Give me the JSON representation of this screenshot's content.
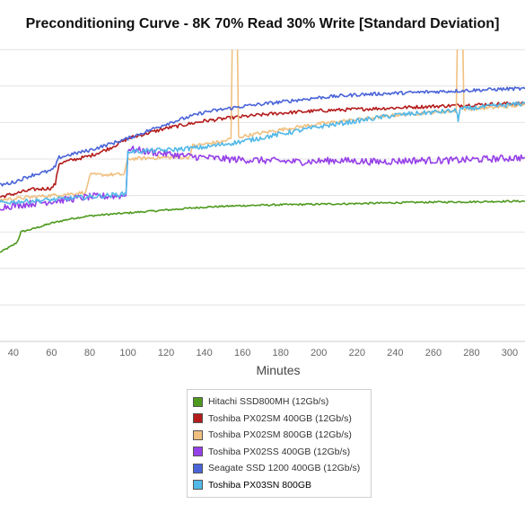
{
  "chart_data": {
    "type": "line",
    "title": "Preconditioning Curve - 8K 70% Read 30% Write [Standard Deviation]",
    "xlabel": "Minutes",
    "ylabel": "",
    "x_ticks": [
      40,
      60,
      80,
      100,
      120,
      140,
      160,
      180,
      200,
      220,
      240,
      260,
      280,
      300
    ],
    "xlim": [
      33,
      308
    ],
    "ylim": [
      0,
      10
    ],
    "grid": "horizontal",
    "legend_position": "bottom",
    "series": [
      {
        "name": "Hitachi SSD800MH (12Gb/s)",
        "color": "#4e9a1e",
        "points": [
          [
            33,
            3.05
          ],
          [
            40,
            3.3
          ],
          [
            42,
            3.4
          ],
          [
            44,
            3.75
          ],
          [
            50,
            3.85
          ],
          [
            60,
            4.05
          ],
          [
            70,
            4.2
          ],
          [
            80,
            4.3
          ],
          [
            90,
            4.35
          ],
          [
            100,
            4.4
          ],
          [
            120,
            4.5
          ],
          [
            140,
            4.6
          ],
          [
            160,
            4.65
          ],
          [
            180,
            4.68
          ],
          [
            200,
            4.7
          ],
          [
            220,
            4.72
          ],
          [
            240,
            4.75
          ],
          [
            260,
            4.77
          ],
          [
            280,
            4.78
          ],
          [
            300,
            4.8
          ],
          [
            308,
            4.8
          ]
        ]
      },
      {
        "name": "Toshiba PX02SM 400GB (12Gb/s)",
        "color": "#b41c1c",
        "points": [
          [
            33,
            4.95
          ],
          [
            40,
            5.05
          ],
          [
            50,
            5.2
          ],
          [
            60,
            5.25
          ],
          [
            62,
            5.4
          ],
          [
            64,
            6.1
          ],
          [
            70,
            6.2
          ],
          [
            80,
            6.35
          ],
          [
            90,
            6.6
          ],
          [
            100,
            6.95
          ],
          [
            120,
            7.3
          ],
          [
            140,
            7.55
          ],
          [
            160,
            7.7
          ],
          [
            180,
            7.82
          ],
          [
            200,
            7.9
          ],
          [
            220,
            7.95
          ],
          [
            240,
            8.0
          ],
          [
            260,
            8.05
          ],
          [
            280,
            8.1
          ],
          [
            300,
            8.15
          ],
          [
            308,
            8.15
          ]
        ]
      },
      {
        "name": "Toshiba PX02SM 800GB (12Gb/s)",
        "color": "#f0c080",
        "points": [
          [
            33,
            4.85
          ],
          [
            60,
            5.0
          ],
          [
            78,
            5.1
          ],
          [
            80,
            5.7
          ],
          [
            98,
            5.72
          ],
          [
            100,
            6.25
          ],
          [
            120,
            6.3
          ],
          [
            132,
            6.3
          ],
          [
            134,
            6.7
          ],
          [
            150,
            6.85
          ],
          [
            154,
            6.95
          ],
          [
            155,
            12
          ],
          [
            157,
            12
          ],
          [
            158,
            7.0
          ],
          [
            180,
            7.25
          ],
          [
            200,
            7.45
          ],
          [
            220,
            7.6
          ],
          [
            240,
            7.75
          ],
          [
            260,
            7.85
          ],
          [
            272,
            7.9
          ],
          [
            273,
            12
          ],
          [
            275,
            12
          ],
          [
            276,
            7.95
          ],
          [
            290,
            8.0
          ],
          [
            300,
            8.05
          ],
          [
            308,
            8.1
          ]
        ]
      },
      {
        "name": "Toshiba PX02SS 400GB (12Gb/s)",
        "color": "#9640e8",
        "points": [
          [
            33,
            4.6
          ],
          [
            60,
            4.8
          ],
          [
            80,
            4.95
          ],
          [
            99,
            5.0
          ],
          [
            100,
            6.6
          ],
          [
            110,
            6.5
          ],
          [
            130,
            6.35
          ],
          [
            150,
            6.25
          ],
          [
            170,
            6.2
          ],
          [
            190,
            6.15
          ],
          [
            210,
            6.2
          ],
          [
            230,
            6.15
          ],
          [
            250,
            6.2
          ],
          [
            270,
            6.2
          ],
          [
            290,
            6.25
          ],
          [
            308,
            6.3
          ]
        ]
      },
      {
        "name": "Seagate SSD 1200 400GB (12Gb/s)",
        "color": "#4a64d8",
        "points": [
          [
            33,
            5.35
          ],
          [
            40,
            5.45
          ],
          [
            50,
            5.7
          ],
          [
            60,
            5.85
          ],
          [
            62,
            6.0
          ],
          [
            64,
            6.3
          ],
          [
            70,
            6.4
          ],
          [
            80,
            6.55
          ],
          [
            90,
            6.75
          ],
          [
            100,
            6.95
          ],
          [
            120,
            7.45
          ],
          [
            140,
            7.85
          ],
          [
            160,
            8.05
          ],
          [
            180,
            8.2
          ],
          [
            200,
            8.35
          ],
          [
            220,
            8.45
          ],
          [
            240,
            8.5
          ],
          [
            260,
            8.55
          ],
          [
            280,
            8.6
          ],
          [
            300,
            8.65
          ],
          [
            308,
            8.65
          ]
        ]
      },
      {
        "name": "Toshiba PX03SN 800GB",
        "color": "#52b8e8",
        "points": [
          [
            33,
            4.75
          ],
          [
            60,
            4.85
          ],
          [
            80,
            4.95
          ],
          [
            99,
            5.05
          ],
          [
            100,
            6.5
          ],
          [
            120,
            6.55
          ],
          [
            140,
            6.65
          ],
          [
            160,
            6.85
          ],
          [
            180,
            7.1
          ],
          [
            200,
            7.35
          ],
          [
            220,
            7.55
          ],
          [
            240,
            7.75
          ],
          [
            260,
            7.85
          ],
          [
            272,
            7.9
          ],
          [
            273,
            7.6
          ],
          [
            274,
            7.95
          ],
          [
            290,
            8.05
          ],
          [
            300,
            8.1
          ],
          [
            308,
            8.15
          ]
        ]
      }
    ]
  }
}
